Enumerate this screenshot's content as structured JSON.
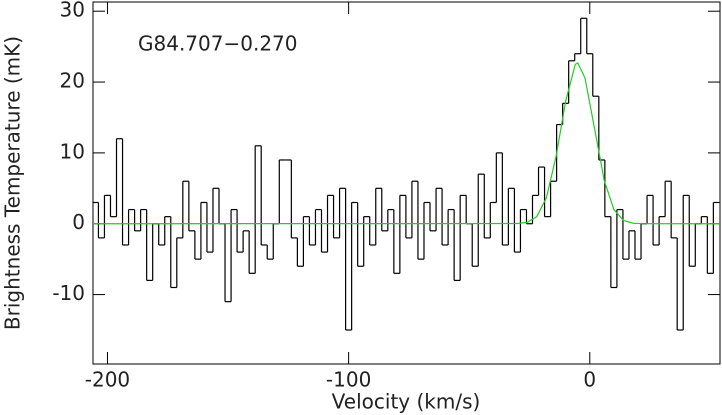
{
  "chart_data": {
    "type": "step",
    "annotation": "G84.707−0.270",
    "x_label": "Velocity (km/s)",
    "y_label": "Brightness Temperature (mK)",
    "xlim": [
      -206,
      54
    ],
    "ylim": [
      -19.8,
      31.3
    ],
    "xticks": [
      -200,
      -100,
      0
    ],
    "yticks": [
      -10,
      0,
      10,
      20,
      30
    ],
    "series": [
      {
        "color": "#000000",
        "x": [
          -205,
          -202.5,
          -200,
          -197.5,
          -195,
          -192.5,
          -190,
          -187.5,
          -185,
          -182.5,
          -180,
          -177.5,
          -175,
          -172.5,
          -170,
          -167.5,
          -165,
          -162.5,
          -160,
          -157.5,
          -155,
          -152.5,
          -150,
          -147.5,
          -145,
          -142.5,
          -140,
          -137.5,
          -135,
          -132.5,
          -130,
          -127.5,
          -125,
          -122.5,
          -120,
          -117.5,
          -115,
          -112.5,
          -110,
          -107.5,
          -105,
          -102.5,
          -100,
          -97.5,
          -95,
          -92.5,
          -90,
          -87.5,
          -85,
          -82.5,
          -80,
          -77.5,
          -75,
          -72.5,
          -70,
          -67.5,
          -65,
          -62.5,
          -60,
          -57.5,
          -55,
          -52.5,
          -50,
          -47.5,
          -45,
          -42.5,
          -40,
          -37.5,
          -35,
          -32.5,
          -30,
          -27.5,
          -25,
          -22.5,
          -20,
          -17.5,
          -15,
          -12.5,
          -10,
          -7.5,
          -5,
          -2.5,
          0,
          2.5,
          5,
          7.5,
          10,
          12.5,
          15,
          17.5,
          20,
          22.5,
          25,
          27.5,
          30,
          32.5,
          35,
          37.5,
          40,
          42.5,
          45,
          47.5,
          50,
          52.5
        ],
        "values": [
          3,
          -2,
          4,
          1,
          12,
          -3,
          2,
          -1,
          2,
          -8,
          0,
          -3,
          1,
          -9,
          -2,
          6,
          -1,
          -5,
          3,
          -4,
          5,
          0,
          -11,
          2,
          -4,
          -1,
          -7,
          11,
          -3,
          -5,
          0,
          9,
          9,
          -2,
          -6,
          1,
          -3,
          2,
          -4,
          4,
          -2,
          5,
          -15,
          3,
          -6,
          1,
          -3,
          5,
          -1,
          2,
          -7,
          4,
          -2,
          6,
          -5,
          3,
          -1,
          5,
          -3,
          2,
          -8,
          4,
          0,
          -6,
          7,
          -2,
          3,
          10,
          -3,
          5,
          -4,
          2,
          0,
          4,
          8,
          1,
          6,
          14,
          17,
          23,
          24,
          29,
          24,
          18,
          9,
          1,
          -9,
          2,
          -5,
          -1,
          -5,
          0,
          4,
          -3,
          1,
          6,
          -2,
          -15,
          4,
          -6,
          0,
          1,
          -7,
          3
        ]
      },
      {
        "color": "#22cc22",
        "x": [
          -206,
          -30,
          -26,
          -22,
          -18,
          -14,
          -10,
          -6,
          -5,
          -2,
          2,
          6,
          10,
          14,
          18,
          22,
          54
        ],
        "values": [
          0,
          0.03,
          0.19,
          1.0,
          3.65,
          9.45,
          17.3,
          22.5,
          22.7,
          20.6,
          13.4,
          6.1,
          2.0,
          0.46,
          0.07,
          0.01,
          0
        ]
      }
    ]
  }
}
